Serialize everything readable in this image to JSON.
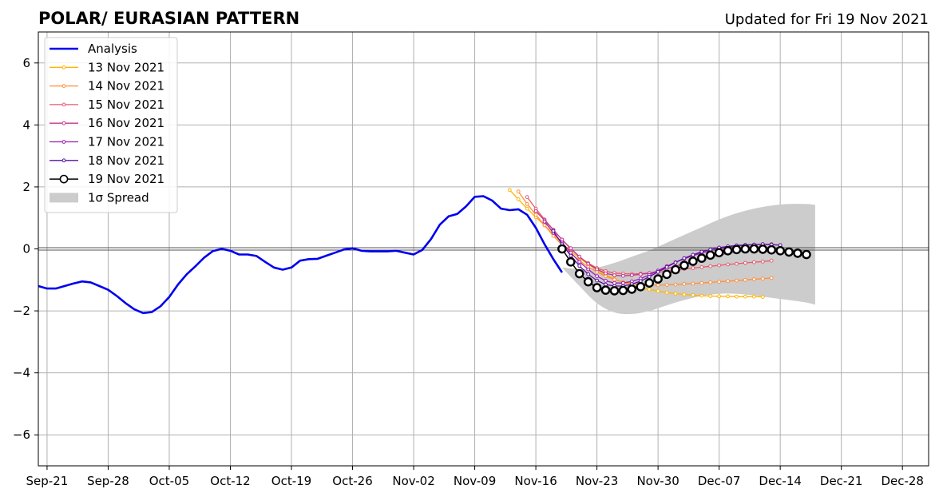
{
  "chart_data": {
    "type": "line",
    "title": "POLAR/ EURASIAN  PATTERN",
    "subtitle": "Updated for Fri 19 Nov 2021",
    "xlabel": "",
    "ylabel": "",
    "xlim": [
      "2021-09-20",
      "2021-12-31"
    ],
    "ylim": [
      -7,
      7
    ],
    "grid": true,
    "legend_position": "top-left",
    "x_ticks": [
      {
        "date": "2021-09-21",
        "label": "Sep-21"
      },
      {
        "date": "2021-09-28",
        "label": "Sep-28"
      },
      {
        "date": "2021-10-05",
        "label": "Oct-05"
      },
      {
        "date": "2021-10-12",
        "label": "Oct-12"
      },
      {
        "date": "2021-10-19",
        "label": "Oct-19"
      },
      {
        "date": "2021-10-26",
        "label": "Oct-26"
      },
      {
        "date": "2021-11-02",
        "label": "Nov-02"
      },
      {
        "date": "2021-11-09",
        "label": "Nov-09"
      },
      {
        "date": "2021-11-16",
        "label": "Nov-16"
      },
      {
        "date": "2021-11-23",
        "label": "Nov-23"
      },
      {
        "date": "2021-11-30",
        "label": "Nov-30"
      },
      {
        "date": "2021-12-07",
        "label": "Dec-07"
      },
      {
        "date": "2021-12-14",
        "label": "Dec-14"
      },
      {
        "date": "2021-12-21",
        "label": "Dec-21"
      },
      {
        "date": "2021-12-28",
        "label": "Dec-28"
      }
    ],
    "y_ticks": [
      {
        "value": 6,
        "label": "6"
      },
      {
        "value": 4,
        "label": "4"
      },
      {
        "value": 2,
        "label": "2"
      },
      {
        "value": 0,
        "label": "0"
      },
      {
        "value": -2,
        "label": "−2"
      },
      {
        "value": -4,
        "label": "−4"
      },
      {
        "value": -6,
        "label": "−6"
      }
    ],
    "analysis": {
      "name": "Analysis",
      "color": "#0000ee",
      "start": "2021-09-20",
      "values": [
        -1.2,
        -1.28,
        -1.28,
        -1.2,
        -1.12,
        -1.05,
        -1.08,
        -1.2,
        -1.32,
        -1.52,
        -1.75,
        -1.95,
        -2.07,
        -2.04,
        -1.85,
        -1.55,
        -1.15,
        -0.82,
        -0.56,
        -0.28,
        -0.07,
        0.0,
        -0.06,
        -0.18,
        -0.18,
        -0.23,
        -0.42,
        -0.6,
        -0.67,
        -0.6,
        -0.38,
        -0.33,
        -0.32,
        -0.22,
        -0.12,
        -0.02,
        0.02,
        -0.06,
        -0.08,
        -0.08,
        -0.08,
        -0.06,
        -0.12,
        -0.18,
        -0.03,
        0.32,
        0.78,
        1.05,
        1.13,
        1.37,
        1.68,
        1.7,
        1.56,
        1.3,
        1.25,
        1.28,
        1.1,
        0.68,
        0.15,
        -0.33,
        -0.76
      ]
    },
    "forecasts": [
      {
        "name": "13 Nov 2021",
        "color": "#ffb400",
        "marker": "small",
        "start": "2021-11-13",
        "values": [
          1.9,
          1.6,
          1.3,
          1.02,
          0.76,
          0.48,
          0.18,
          -0.08,
          -0.3,
          -0.5,
          -0.68,
          -0.84,
          -0.97,
          -1.08,
          -1.17,
          -1.25,
          -1.31,
          -1.36,
          -1.41,
          -1.44,
          -1.47,
          -1.49,
          -1.51,
          -1.52,
          -1.53,
          -1.53,
          -1.54,
          -1.54,
          -1.54,
          -1.55
        ]
      },
      {
        "name": "14 Nov 2021",
        "color": "#ff8f3a",
        "marker": "small",
        "start": "2021-11-14",
        "values": [
          1.85,
          1.45,
          1.1,
          0.76,
          0.42,
          0.12,
          -0.15,
          -0.38,
          -0.58,
          -0.74,
          -0.88,
          -0.99,
          -1.07,
          -1.12,
          -1.15,
          -1.17,
          -1.17,
          -1.16,
          -1.15,
          -1.13,
          -1.12,
          -1.1,
          -1.08,
          -1.06,
          -1.04,
          -1.02,
          -1.0,
          -0.98,
          -0.96,
          -0.94
        ]
      },
      {
        "name": "15 Nov 2021",
        "color": "#e65a6e",
        "marker": "small",
        "start": "2021-11-15",
        "values": [
          1.67,
          1.3,
          0.95,
          0.62,
          0.3,
          0.0,
          -0.26,
          -0.46,
          -0.62,
          -0.72,
          -0.78,
          -0.8,
          -0.81,
          -0.8,
          -0.78,
          -0.75,
          -0.72,
          -0.68,
          -0.65,
          -0.62,
          -0.59,
          -0.56,
          -0.53,
          -0.5,
          -0.48,
          -0.45,
          -0.43,
          -0.41,
          -0.38
        ]
      },
      {
        "name": "16 Nov 2021",
        "color": "#c4368e",
        "marker": "small",
        "start": "2021-11-16",
        "values": [
          1.22,
          0.92,
          0.62,
          0.3,
          0.02,
          -0.25,
          -0.48,
          -0.66,
          -0.79,
          -0.85,
          -0.87,
          -0.85,
          -0.82,
          -0.78,
          -0.72,
          -0.64,
          -0.56,
          -0.47,
          -0.4,
          -0.32,
          -0.26,
          -0.2,
          -0.14,
          -0.1,
          -0.06,
          -0.03
        ]
      },
      {
        "name": "17 Nov 2021",
        "color": "#9b1fb0",
        "marker": "small",
        "start": "2021-11-17",
        "values": [
          0.88,
          0.52,
          0.2,
          -0.12,
          -0.42,
          -0.66,
          -0.88,
          -1.03,
          -1.1,
          -1.1,
          -1.05,
          -0.96,
          -0.84,
          -0.7,
          -0.56,
          -0.43,
          -0.32,
          -0.22,
          -0.13,
          -0.06,
          0.0,
          0.05,
          0.09,
          0.12,
          0.14,
          0.15,
          0.15
        ]
      },
      {
        "name": "18 Nov 2021",
        "color": "#5a0fa0",
        "marker": "small",
        "start": "2021-11-18",
        "values": [
          0.58,
          0.15,
          -0.22,
          -0.55,
          -0.82,
          -1.02,
          -1.15,
          -1.2,
          -1.2,
          -1.14,
          -1.04,
          -0.9,
          -0.74,
          -0.58,
          -0.44,
          -0.3,
          -0.19,
          -0.09,
          -0.02,
          0.04,
          0.08,
          0.11,
          0.13,
          0.14,
          0.15,
          0.14,
          0.12
        ]
      },
      {
        "name": "19 Nov 2021",
        "color": "#000000",
        "marker": "large",
        "start": "2021-11-19",
        "values": [
          0.0,
          -0.42,
          -0.8,
          -1.06,
          -1.25,
          -1.33,
          -1.35,
          -1.34,
          -1.3,
          -1.22,
          -1.1,
          -0.97,
          -0.82,
          -0.67,
          -0.53,
          -0.4,
          -0.3,
          -0.2,
          -0.12,
          -0.06,
          -0.02,
          0.0,
          0.0,
          -0.01,
          -0.03,
          -0.06,
          -0.1,
          -0.14,
          -0.18
        ]
      }
    ],
    "spread": {
      "name": "1σ Spread",
      "color": "#cccccc",
      "x": [
        "2021-11-19",
        "2021-11-21",
        "2021-11-23",
        "2021-11-25",
        "2021-11-27",
        "2021-11-29",
        "2021-12-01",
        "2021-12-03",
        "2021-12-05",
        "2021-12-07",
        "2021-12-09",
        "2021-12-11",
        "2021-12-13",
        "2021-12-15",
        "2021-12-17",
        "2021-12-18"
      ],
      "upper": [
        -0.6,
        -0.65,
        -0.6,
        -0.45,
        -0.25,
        -0.05,
        0.2,
        0.45,
        0.7,
        0.95,
        1.15,
        1.3,
        1.4,
        1.45,
        1.45,
        1.42
      ],
      "lower": [
        -0.6,
        -1.2,
        -1.75,
        -2.05,
        -2.1,
        -2.0,
        -1.82,
        -1.65,
        -1.52,
        -1.45,
        -1.45,
        -1.5,
        -1.58,
        -1.65,
        -1.73,
        -1.8
      ]
    }
  }
}
